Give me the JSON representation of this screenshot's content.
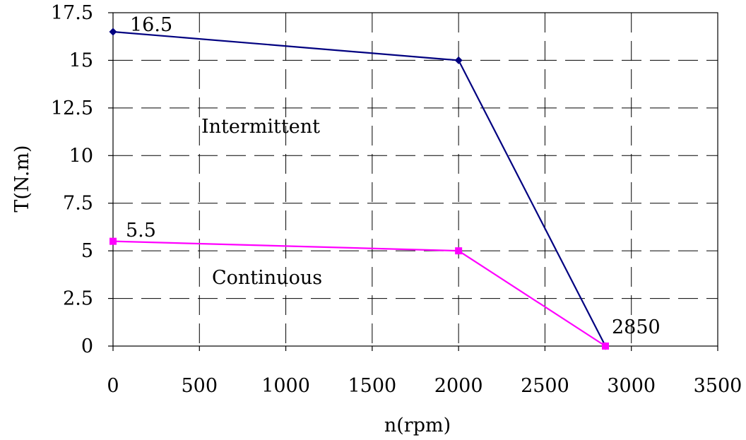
{
  "chart_data": {
    "type": "line",
    "xlabel": "n(rpm)",
    "ylabel": "T(N.m)",
    "xlim": [
      0,
      3500
    ],
    "ylim": [
      0,
      17.5
    ],
    "x_ticks": [
      0,
      500,
      1000,
      1500,
      2000,
      2500,
      3000,
      3500
    ],
    "y_ticks": [
      0,
      2.5,
      5,
      7.5,
      10,
      12.5,
      15,
      17.5
    ],
    "x_tick_labels": [
      "0",
      "500",
      "1000",
      "1500",
      "2000",
      "2500",
      "3000",
      "3500"
    ],
    "y_tick_labels": [
      "0",
      "2.5",
      "5",
      "7.5",
      "10",
      "12.5",
      "15",
      "17.5"
    ],
    "grid": true,
    "series": [
      {
        "label": "Intermittent",
        "color": "#000080",
        "marker": "diamond",
        "points": [
          [
            0,
            16.5
          ],
          [
            2000,
            15
          ],
          [
            2850,
            0
          ]
        ]
      },
      {
        "label": "Continuous",
        "color": "#ff00ff",
        "marker": "square",
        "points": [
          [
            0,
            5.5
          ],
          [
            2000,
            5
          ],
          [
            2850,
            0
          ]
        ]
      }
    ],
    "annotations": [
      {
        "text": "16.5",
        "x": 0,
        "y": 16.5
      },
      {
        "text": "5.5",
        "x": 0,
        "y": 5.5
      },
      {
        "text": "2850",
        "x": 2850,
        "y": 0
      }
    ]
  }
}
